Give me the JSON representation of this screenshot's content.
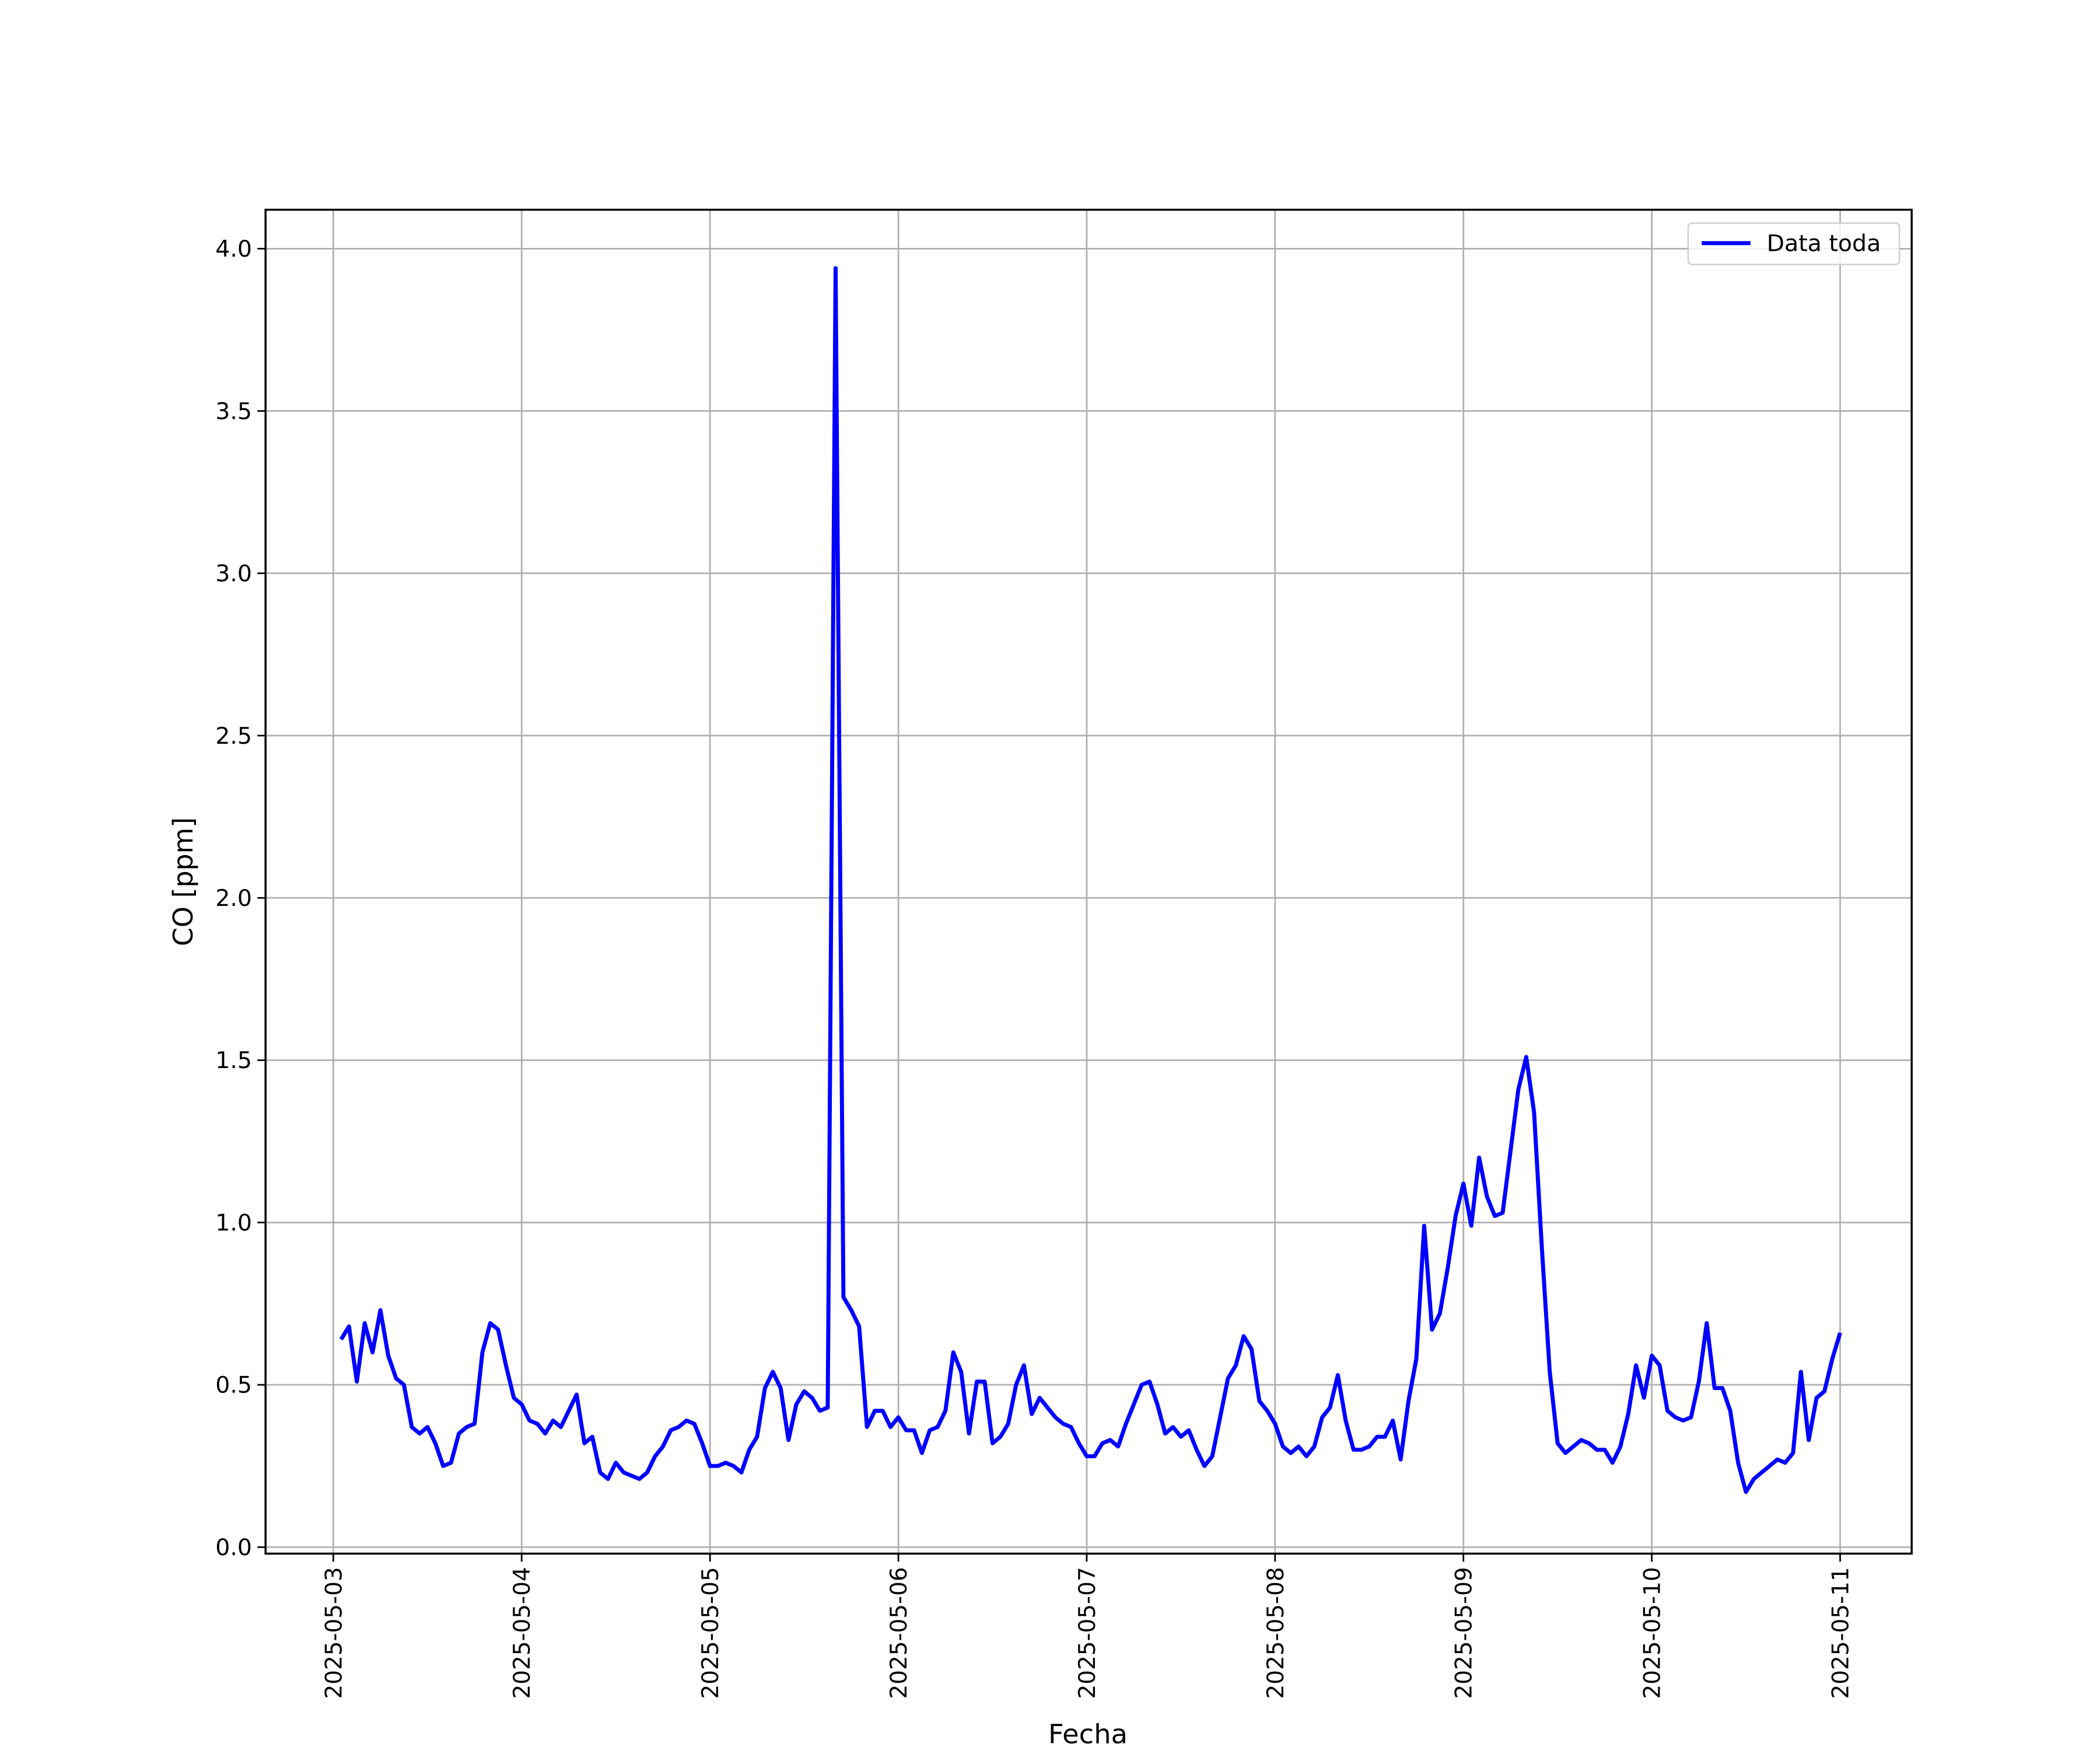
{
  "chart_data": {
    "type": "line",
    "xlabel": "Fecha",
    "ylabel": "CO [ppm]",
    "x": [
      "2025-05-03T01:00",
      "2025-05-03T02:00",
      "2025-05-03T03:00",
      "2025-05-03T04:00",
      "2025-05-03T05:00",
      "2025-05-03T06:00",
      "2025-05-03T07:00",
      "2025-05-03T08:00",
      "2025-05-03T09:00",
      "2025-05-03T10:00",
      "2025-05-03T11:00",
      "2025-05-03T12:00",
      "2025-05-03T13:00",
      "2025-05-03T14:00",
      "2025-05-03T15:00",
      "2025-05-03T16:00",
      "2025-05-03T17:00",
      "2025-05-03T18:00",
      "2025-05-03T19:00",
      "2025-05-03T20:00",
      "2025-05-03T21:00",
      "2025-05-03T22:00",
      "2025-05-03T23:00",
      "2025-05-04T00:00",
      "2025-05-04T01:00",
      "2025-05-04T02:00",
      "2025-05-04T03:00",
      "2025-05-04T04:00",
      "2025-05-04T05:00",
      "2025-05-04T06:00",
      "2025-05-04T07:00",
      "2025-05-04T08:00",
      "2025-05-04T09:00",
      "2025-05-04T10:00",
      "2025-05-04T11:00",
      "2025-05-04T12:00",
      "2025-05-04T13:00",
      "2025-05-04T14:00",
      "2025-05-04T15:00",
      "2025-05-04T16:00",
      "2025-05-04T17:00",
      "2025-05-04T18:00",
      "2025-05-04T19:00",
      "2025-05-04T20:00",
      "2025-05-04T21:00",
      "2025-05-04T22:00",
      "2025-05-04T23:00",
      "2025-05-05T00:00",
      "2025-05-05T01:00",
      "2025-05-05T02:00",
      "2025-05-05T03:00",
      "2025-05-05T04:00",
      "2025-05-05T05:00",
      "2025-05-05T06:00",
      "2025-05-05T07:00",
      "2025-05-05T08:00",
      "2025-05-05T09:00",
      "2025-05-05T10:00",
      "2025-05-05T11:00",
      "2025-05-05T12:00",
      "2025-05-05T13:00",
      "2025-05-05T14:00",
      "2025-05-05T15:00",
      "2025-05-05T16:00",
      "2025-05-05T17:00",
      "2025-05-05T18:00",
      "2025-05-05T19:00",
      "2025-05-05T20:00",
      "2025-05-05T21:00",
      "2025-05-05T22:00",
      "2025-05-05T23:00",
      "2025-05-06T00:00",
      "2025-05-06T01:00",
      "2025-05-06T02:00",
      "2025-05-06T03:00",
      "2025-05-06T04:00",
      "2025-05-06T05:00",
      "2025-05-06T06:00",
      "2025-05-06T07:00",
      "2025-05-06T08:00",
      "2025-05-06T09:00",
      "2025-05-06T10:00",
      "2025-05-06T11:00",
      "2025-05-06T12:00",
      "2025-05-06T13:00",
      "2025-05-06T14:00",
      "2025-05-06T15:00",
      "2025-05-06T16:00",
      "2025-05-06T17:00",
      "2025-05-06T18:00",
      "2025-05-06T19:00",
      "2025-05-06T20:00",
      "2025-05-06T21:00",
      "2025-05-06T22:00",
      "2025-05-06T23:00",
      "2025-05-07T00:00",
      "2025-05-07T01:00",
      "2025-05-07T02:00",
      "2025-05-07T03:00",
      "2025-05-07T04:00",
      "2025-05-07T05:00",
      "2025-05-07T06:00",
      "2025-05-07T07:00",
      "2025-05-07T08:00",
      "2025-05-07T09:00",
      "2025-05-07T10:00",
      "2025-05-07T11:00",
      "2025-05-07T12:00",
      "2025-05-07T13:00",
      "2025-05-07T14:00",
      "2025-05-07T15:00",
      "2025-05-07T16:00",
      "2025-05-07T17:00",
      "2025-05-07T18:00",
      "2025-05-07T19:00",
      "2025-05-07T20:00",
      "2025-05-07T21:00",
      "2025-05-07T22:00",
      "2025-05-07T23:00",
      "2025-05-08T00:00",
      "2025-05-08T01:00",
      "2025-05-08T02:00",
      "2025-05-08T03:00",
      "2025-05-08T04:00",
      "2025-05-08T05:00",
      "2025-05-08T06:00",
      "2025-05-08T07:00",
      "2025-05-08T08:00",
      "2025-05-08T09:00",
      "2025-05-08T10:00",
      "2025-05-08T11:00",
      "2025-05-08T12:00",
      "2025-05-08T13:00",
      "2025-05-08T14:00",
      "2025-05-08T15:00",
      "2025-05-08T16:00",
      "2025-05-08T17:00",
      "2025-05-08T18:00",
      "2025-05-08T19:00",
      "2025-05-08T20:00",
      "2025-05-08T21:00",
      "2025-05-08T22:00",
      "2025-05-08T23:00",
      "2025-05-09T00:00",
      "2025-05-09T01:00",
      "2025-05-09T02:00",
      "2025-05-09T03:00",
      "2025-05-09T04:00",
      "2025-05-09T05:00",
      "2025-05-09T06:00",
      "2025-05-09T07:00",
      "2025-05-09T08:00",
      "2025-05-09T09:00",
      "2025-05-09T10:00",
      "2025-05-09T11:00",
      "2025-05-09T12:00",
      "2025-05-09T13:00",
      "2025-05-09T14:00",
      "2025-05-09T15:00",
      "2025-05-09T16:00",
      "2025-05-09T17:00",
      "2025-05-09T18:00",
      "2025-05-09T19:00",
      "2025-05-09T20:00",
      "2025-05-09T21:00",
      "2025-05-09T22:00",
      "2025-05-09T23:00",
      "2025-05-10T00:00",
      "2025-05-10T01:00",
      "2025-05-10T02:00",
      "2025-05-10T03:00",
      "2025-05-10T04:00",
      "2025-05-10T05:00",
      "2025-05-10T06:00",
      "2025-05-10T07:00",
      "2025-05-10T08:00",
      "2025-05-10T09:00",
      "2025-05-10T10:00",
      "2025-05-10T11:00",
      "2025-05-10T12:00",
      "2025-05-10T13:00",
      "2025-05-10T14:00",
      "2025-05-10T15:00",
      "2025-05-10T16:00",
      "2025-05-10T17:00",
      "2025-05-10T18:00",
      "2025-05-10T19:00",
      "2025-05-10T20:00",
      "2025-05-10T21:00",
      "2025-05-10T22:00",
      "2025-05-10T23:00",
      "2025-05-11T00:00"
    ],
    "series": [
      {
        "name": "Data toda",
        "color": "#0000ff",
        "values": [
          0.64,
          0.68,
          0.51,
          0.69,
          0.6,
          0.73,
          0.59,
          0.52,
          0.5,
          0.37,
          0.35,
          0.37,
          0.32,
          0.25,
          0.26,
          0.35,
          0.37,
          0.38,
          0.6,
          0.69,
          0.67,
          0.56,
          0.46,
          0.44,
          0.39,
          0.38,
          0.35,
          0.39,
          0.37,
          0.42,
          0.47,
          0.32,
          0.34,
          0.23,
          0.21,
          0.26,
          0.23,
          0.22,
          0.21,
          0.23,
          0.28,
          0.31,
          0.36,
          0.37,
          0.39,
          0.38,
          0.32,
          0.25,
          0.25,
          0.26,
          0.25,
          0.23,
          0.3,
          0.34,
          0.49,
          0.54,
          0.49,
          0.33,
          0.44,
          0.48,
          0.46,
          0.42,
          0.43,
          3.94,
          0.77,
          0.73,
          0.68,
          0.37,
          0.42,
          0.42,
          0.37,
          0.4,
          0.36,
          0.36,
          0.29,
          0.36,
          0.37,
          0.42,
          0.6,
          0.54,
          0.35,
          0.51,
          0.51,
          0.32,
          0.34,
          0.38,
          0.5,
          0.56,
          0.41,
          0.46,
          0.43,
          0.4,
          0.38,
          0.37,
          0.32,
          0.28,
          0.28,
          0.32,
          0.33,
          0.31,
          0.38,
          0.44,
          0.5,
          0.51,
          0.44,
          0.35,
          0.37,
          0.34,
          0.36,
          0.3,
          0.25,
          0.28,
          0.4,
          0.52,
          0.56,
          0.65,
          0.61,
          0.45,
          0.42,
          0.38,
          0.31,
          0.29,
          0.31,
          0.28,
          0.31,
          0.4,
          0.43,
          0.53,
          0.39,
          0.3,
          0.3,
          0.31,
          0.34,
          0.34,
          0.39,
          0.27,
          0.45,
          0.58,
          0.99,
          0.67,
          0.72,
          0.86,
          1.02,
          1.12,
          0.99,
          1.2,
          1.08,
          1.02,
          1.03,
          1.22,
          1.41,
          1.51,
          1.34,
          0.92,
          0.54,
          0.32,
          0.29,
          0.31,
          0.33,
          0.32,
          0.3,
          0.3,
          0.26,
          0.31,
          0.41,
          0.56,
          0.46,
          0.59,
          0.56,
          0.42,
          0.4,
          0.39,
          0.4,
          0.51,
          0.69,
          0.49,
          0.49,
          0.42,
          0.26,
          0.17,
          0.21,
          0.23,
          0.25,
          0.27,
          0.26,
          0.29,
          0.54,
          0.33,
          0.46,
          0.48,
          0.58,
          0.66
        ]
      }
    ],
    "xlim": [
      "2025-05-02T15:22",
      "2025-05-11T09:07"
    ],
    "xticks": [
      "2025-05-03",
      "2025-05-04",
      "2025-05-05",
      "2025-05-06",
      "2025-05-07",
      "2025-05-08",
      "2025-05-09",
      "2025-05-10",
      "2025-05-11"
    ],
    "ylim": [
      -0.02,
      4.12
    ],
    "yticks": [
      {
        "value": 0,
        "label": "0.0"
      },
      {
        "value": 0.5,
        "label": "0.5"
      },
      {
        "value": 1,
        "label": "1.0"
      },
      {
        "value": 1.5,
        "label": "1.5"
      },
      {
        "value": 2,
        "label": "2.0"
      },
      {
        "value": 2.5,
        "label": "2.5"
      },
      {
        "value": 3,
        "label": "3.0"
      },
      {
        "value": 3.5,
        "label": "3.5"
      },
      {
        "value": 4,
        "label": "4.0"
      }
    ],
    "grid": true,
    "legend": "upper right"
  }
}
